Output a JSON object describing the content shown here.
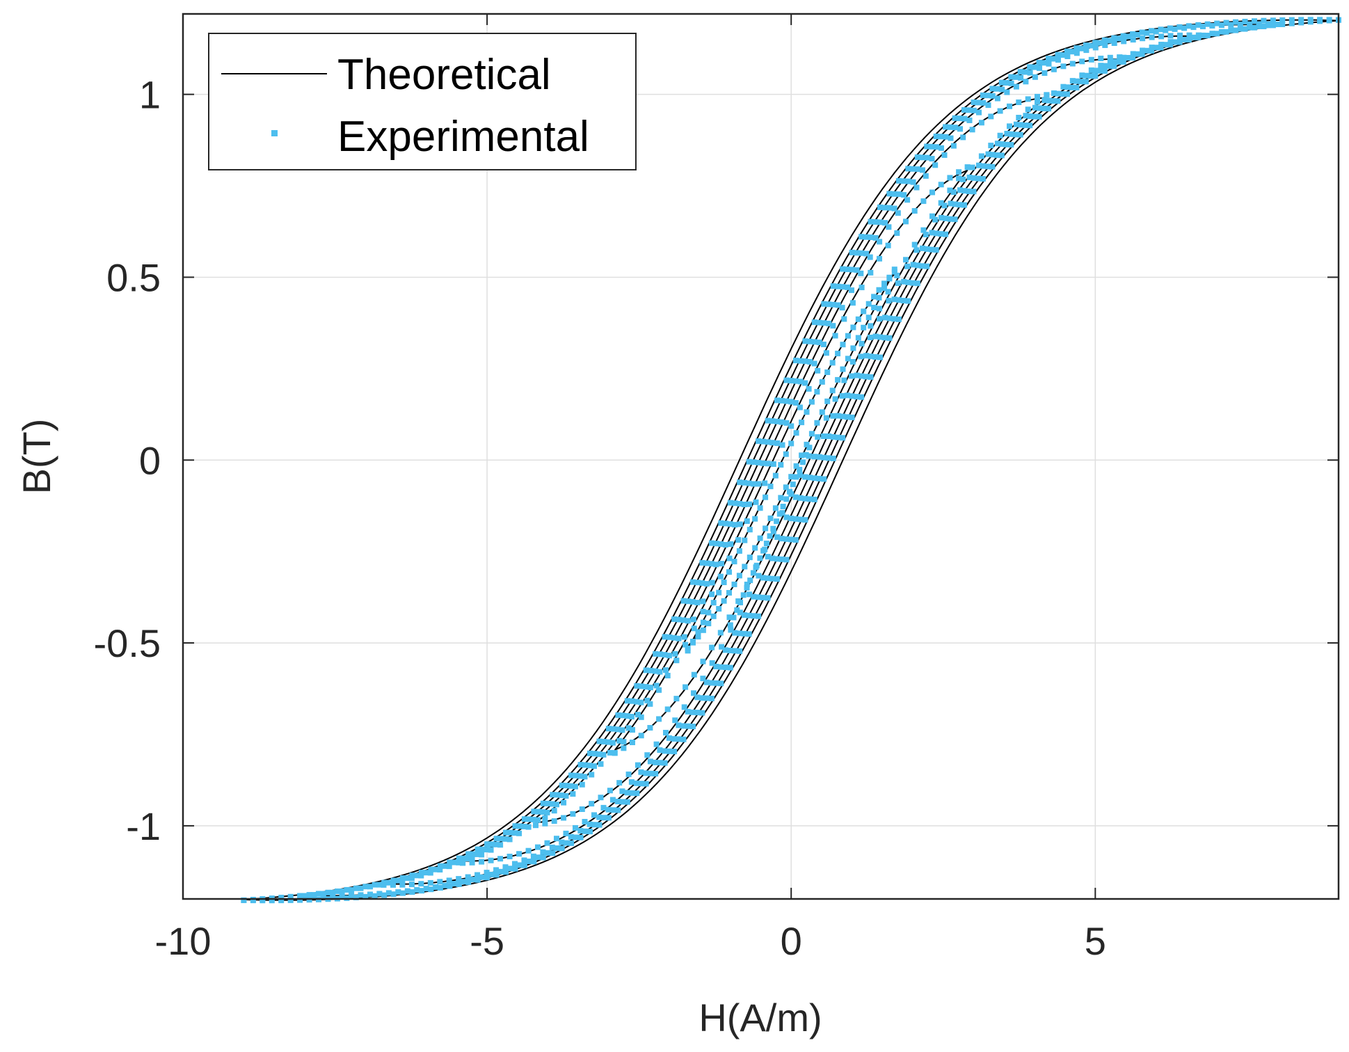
{
  "chart_data": {
    "type": "line",
    "title": "",
    "xlabel": "H(A/m)",
    "ylabel": "B(T)",
    "xlim": [
      -10,
      9
    ],
    "ylim": [
      -1.2,
      1.22
    ],
    "xticks": [
      -10,
      -5,
      0,
      5
    ],
    "xtick_labels": [
      "-10",
      "-5",
      "0",
      "5"
    ],
    "yticks": [
      -1,
      -0.5,
      0,
      0.5,
      1
    ],
    "ytick_labels": [
      "-1",
      "-0.5",
      "0",
      "0.5",
      "1"
    ],
    "grid": true,
    "legend_position": "top-left",
    "colors": {
      "theoretical": "#000000",
      "experimental": "#4DBEEE",
      "grid": "#dfdfdf",
      "axis": "#262626"
    },
    "series": [
      {
        "name": "Theoretical",
        "style": "solid-line",
        "model": "nested symmetric hysteresis loops: B = Bs*tanh(k*(H -/+ hc)) with turning points",
        "saturation_B": 1.22,
        "slope_k": 0.3,
        "loops": [
          {
            "H_max": 9.0,
            "coercivity": 0.85
          },
          {
            "H_max": 8.0,
            "coercivity": 0.72
          },
          {
            "H_max": 6.7,
            "coercivity": 0.62
          },
          {
            "H_max": 5.4,
            "coercivity": 0.52
          },
          {
            "H_max": 4.2,
            "coercivity": 0.42
          },
          {
            "H_max": 2.9,
            "coercivity": 0.32
          },
          {
            "H_max": 1.7,
            "coercivity": 0.22
          }
        ]
      },
      {
        "name": "Experimental",
        "style": "square-markers",
        "model": "nested symmetric hysteresis loops: B = Bs*tanh(k*(H -/+ hc)) with turning points",
        "saturation_B": 1.22,
        "slope_k": 0.3,
        "loops": [
          {
            "H_max": 9.0,
            "coercivity": 0.68
          },
          {
            "H_max": 8.0,
            "coercivity": 0.6
          },
          {
            "H_max": 6.7,
            "coercivity": 0.52
          },
          {
            "H_max": 5.4,
            "coercivity": 0.44
          },
          {
            "H_max": 4.2,
            "coercivity": 0.36
          },
          {
            "H_max": 2.9,
            "coercivity": 0.28
          },
          {
            "H_max": 1.7,
            "coercivity": 0.2
          }
        ],
        "final_segment": {
          "H_from": -1.0,
          "H_to": 0.3
        }
      }
    ]
  }
}
